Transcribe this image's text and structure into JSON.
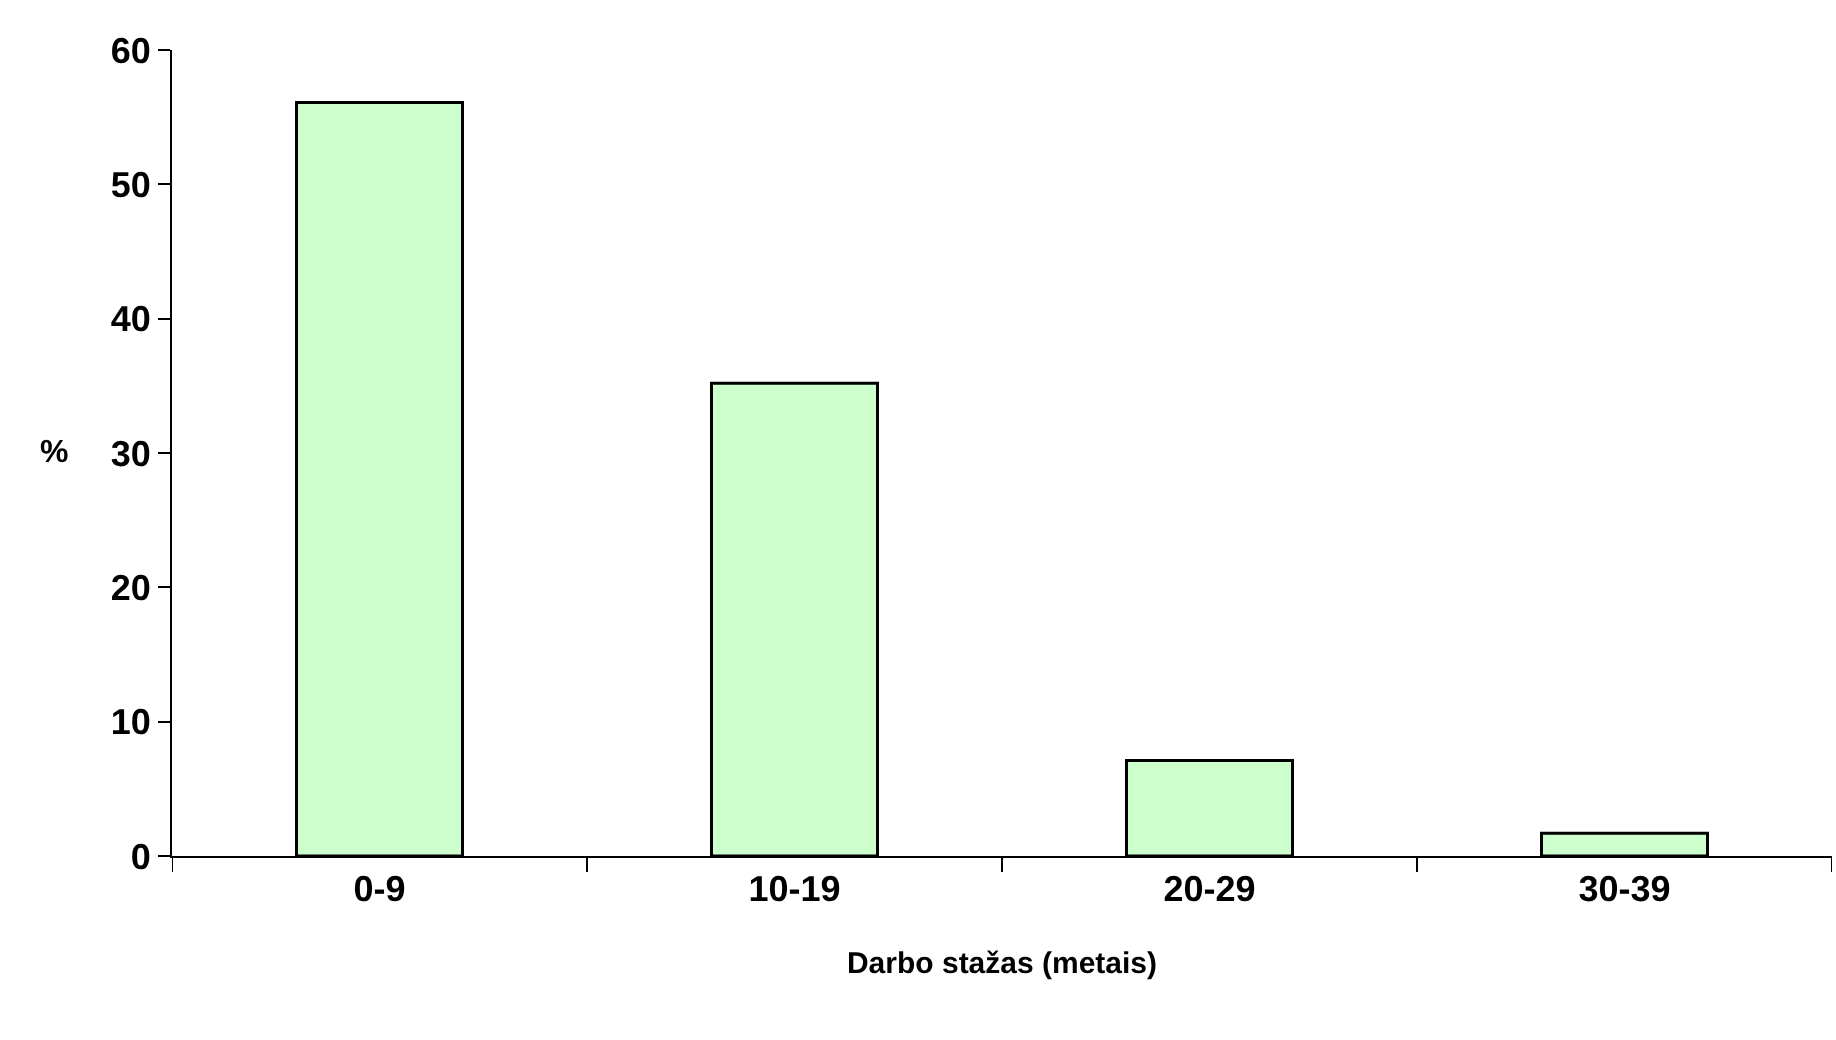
{
  "chart_data": {
    "type": "bar",
    "xlabel": "Darbo stažas (metais)",
    "ylabel": "%",
    "categories": [
      "0-9",
      "10-19",
      "20-29",
      "30-39"
    ],
    "values": [
      56.1,
      35.2,
      7.1,
      1.7
    ],
    "color": "#ccffcc",
    "ylim": [
      0,
      60
    ],
    "yticks": [
      0,
      10,
      20,
      30,
      40,
      50,
      60
    ]
  }
}
